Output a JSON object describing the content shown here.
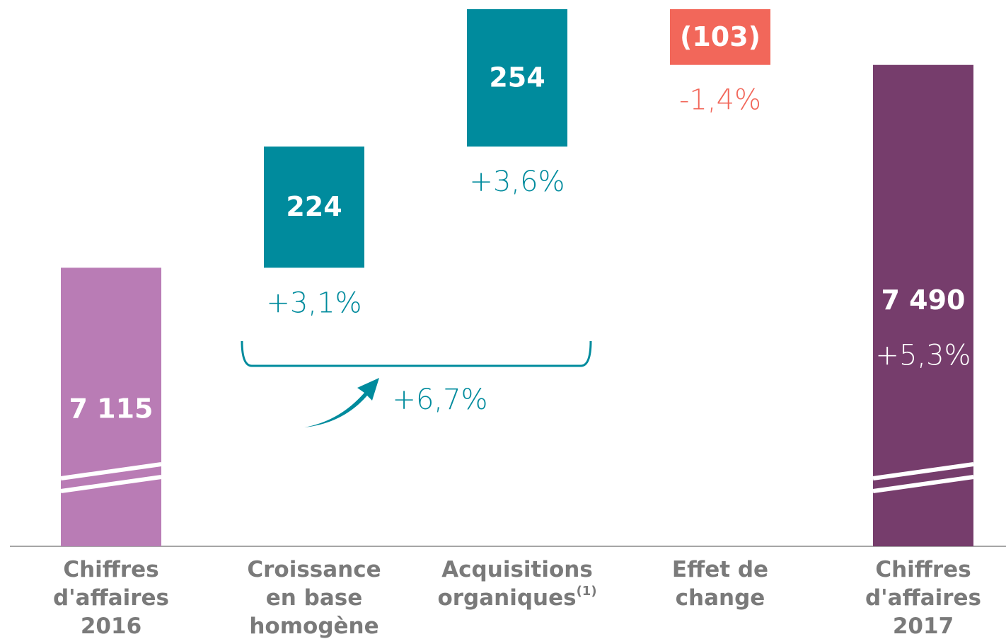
{
  "chart_data": {
    "type": "waterfall",
    "categories": [
      [
        "Chiffres",
        "d'affaires",
        "2016"
      ],
      [
        "Croissance",
        "en base",
        "homogène"
      ],
      [
        "Acquisitions",
        "organiques"
      ],
      [
        "Effet de",
        "change"
      ],
      [
        "Chiffres",
        "d'affaires",
        "2017"
      ]
    ],
    "category_notes": [
      null,
      null,
      "(1)",
      null,
      null
    ],
    "values": [
      7115,
      224,
      254,
      -103,
      7490
    ],
    "value_labels": [
      "7 115",
      "224",
      "254",
      "(103)",
      "7 490"
    ],
    "change_labels": [
      null,
      "+3,1%",
      "+3,6%",
      "-1,4%",
      "+5,3%"
    ],
    "is_total": [
      true,
      false,
      false,
      false,
      true
    ],
    "colors": [
      "#b97cb5",
      "#008b9d",
      "#008b9d",
      "#f2675a",
      "#763d6c"
    ],
    "ylim": [
      6600,
      7610
    ],
    "bracket": {
      "label": "+6,7%",
      "from": 1,
      "to": 2
    }
  }
}
